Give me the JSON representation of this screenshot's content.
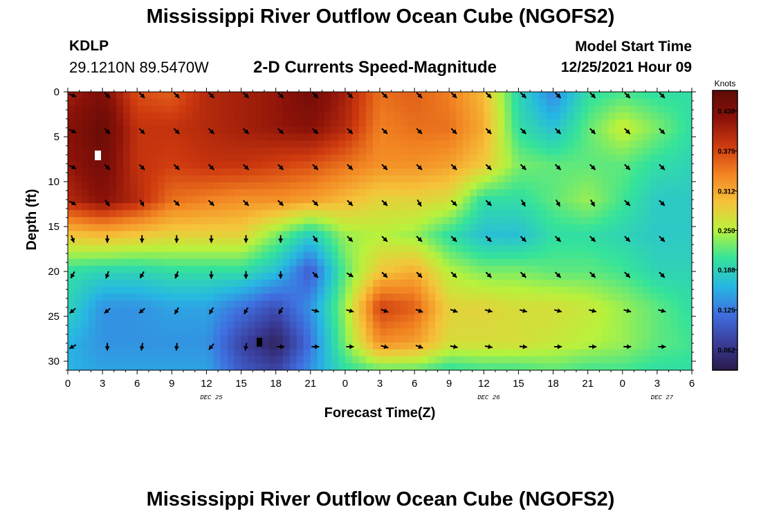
{
  "header": {
    "title": "Mississippi River Outflow Ocean Cube (NGOFS2)",
    "station": "KDLP",
    "coords": "29.1210N  89.5470W",
    "subtitle": "2-D Currents Speed-Magnitude",
    "model_start_label": "Model Start Time",
    "model_start_value": "12/25/2021 Hour 09"
  },
  "footer": {
    "title": "Mississippi River Outflow Ocean Cube (NGOFS2)"
  },
  "chart_data": {
    "type": "heatmap",
    "title": "2-D Currents Speed-Magnitude",
    "xlabel": "Forecast Time(Z)",
    "ylabel": "Depth (ft)",
    "x_tick_labels": [
      "0",
      "3",
      "6",
      "9",
      "12",
      "15",
      "18",
      "21",
      "0",
      "3",
      "6",
      "9",
      "12",
      "15",
      "18",
      "21",
      "0",
      "3",
      "6"
    ],
    "x_date_labels": [
      {
        "label": "DEC 25",
        "at_hours_from_start": 12
      },
      {
        "label": "DEC 26",
        "at_hours_from_start": 36
      },
      {
        "label": "DEC 27",
        "at_hours_from_start": 51
      }
    ],
    "x_range_hours": [
      0,
      54
    ],
    "y_ticks": [
      0,
      5,
      10,
      15,
      20,
      25,
      30
    ],
    "ylim": [
      0,
      31
    ],
    "y_inverted": true,
    "colorbar": {
      "units": "Knots",
      "tick_labels": [
        "0.438",
        "0.375",
        "0.312",
        "0.250",
        "0.188",
        "0.125",
        "0.062"
      ],
      "range": [
        0.03,
        0.47
      ],
      "colors": [
        "#2b1a4a",
        "#3a3d9a",
        "#3f6fe0",
        "#27b7e3",
        "#35e39a",
        "#b8f23c",
        "#f6c33a",
        "#f28422",
        "#cf3a0f",
        "#8b1209",
        "#5e0a06"
      ]
    },
    "speed_grid": {
      "hours": [
        0,
        3,
        6,
        9,
        12,
        15,
        18,
        21,
        24,
        27,
        30,
        33,
        36,
        39,
        42,
        45,
        48,
        51,
        54
      ],
      "depths_ft": [
        0,
        4,
        8,
        12,
        16,
        20,
        24,
        28,
        31
      ],
      "values_knots": [
        [
          0.41,
          0.44,
          0.37,
          0.36,
          0.4,
          0.41,
          0.42,
          0.45,
          0.41,
          0.35,
          0.36,
          0.34,
          0.3,
          0.19,
          0.13,
          0.2,
          0.21,
          0.2,
          0.2
        ],
        [
          0.43,
          0.46,
          0.39,
          0.39,
          0.4,
          0.41,
          0.42,
          0.43,
          0.4,
          0.34,
          0.35,
          0.35,
          0.31,
          0.2,
          0.17,
          0.22,
          0.26,
          0.23,
          0.2
        ],
        [
          0.42,
          0.45,
          0.39,
          0.38,
          0.39,
          0.39,
          0.38,
          0.37,
          0.35,
          0.33,
          0.33,
          0.32,
          0.29,
          0.23,
          0.22,
          0.22,
          0.22,
          0.2,
          0.19
        ],
        [
          0.4,
          0.43,
          0.4,
          0.35,
          0.34,
          0.33,
          0.33,
          0.32,
          0.3,
          0.28,
          0.28,
          0.27,
          0.2,
          0.2,
          0.22,
          0.24,
          0.21,
          0.18,
          0.18
        ],
        [
          0.29,
          0.3,
          0.29,
          0.28,
          0.28,
          0.28,
          0.23,
          0.18,
          0.24,
          0.25,
          0.24,
          0.2,
          0.17,
          0.17,
          0.2,
          0.2,
          0.19,
          0.18,
          0.18
        ],
        [
          0.2,
          0.19,
          0.19,
          0.2,
          0.2,
          0.2,
          0.17,
          0.1,
          0.22,
          0.29,
          0.31,
          0.25,
          0.23,
          0.23,
          0.22,
          0.22,
          0.21,
          0.19,
          0.19
        ],
        [
          0.19,
          0.14,
          0.14,
          0.15,
          0.15,
          0.12,
          0.09,
          0.14,
          0.24,
          0.38,
          0.36,
          0.28,
          0.28,
          0.27,
          0.27,
          0.26,
          0.24,
          0.22,
          0.2
        ],
        [
          0.16,
          0.14,
          0.14,
          0.14,
          0.14,
          0.08,
          0.04,
          0.12,
          0.23,
          0.33,
          0.32,
          0.27,
          0.27,
          0.27,
          0.26,
          0.25,
          0.24,
          0.22,
          0.21
        ],
        [
          0.16,
          0.15,
          0.15,
          0.15,
          0.15,
          0.1,
          0.08,
          0.14,
          0.2,
          0.22,
          0.22,
          0.2,
          0.21,
          0.21,
          0.22,
          0.21,
          0.21,
          0.2,
          0.2
        ]
      ]
    },
    "vectors": {
      "hours": [
        0,
        3,
        6,
        9,
        12,
        15,
        18,
        21,
        24,
        27,
        30,
        33,
        36,
        39,
        42,
        45,
        48,
        51
      ],
      "depths_ft": [
        0,
        4,
        8,
        12,
        16,
        20,
        24,
        28
      ],
      "angle_deg": [
        [
          20,
          45,
          45,
          45,
          45,
          45,
          45,
          45,
          45,
          45,
          45,
          45,
          45,
          45,
          45,
          45,
          45,
          45
        ],
        [
          25,
          45,
          45,
          45,
          45,
          45,
          45,
          45,
          45,
          45,
          45,
          45,
          45,
          45,
          45,
          45,
          45,
          45
        ],
        [
          25,
          45,
          45,
          45,
          45,
          45,
          45,
          45,
          45,
          45,
          45,
          45,
          45,
          45,
          45,
          45,
          45,
          45
        ],
        [
          30,
          55,
          60,
          45,
          45,
          45,
          45,
          45,
          45,
          45,
          60,
          45,
          45,
          60,
          60,
          60,
          45,
          45
        ],
        [
          70,
          90,
          90,
          90,
          90,
          90,
          90,
          55,
          45,
          45,
          45,
          45,
          45,
          45,
          45,
          45,
          45,
          45
        ],
        [
          120,
          110,
          120,
          110,
          90,
          90,
          90,
          45,
          30,
          45,
          45,
          45,
          45,
          45,
          45,
          45,
          45,
          45
        ],
        [
          140,
          140,
          140,
          120,
          120,
          120,
          120,
          15,
          15,
          20,
          20,
          20,
          15,
          15,
          15,
          15,
          15,
          15
        ],
        [
          150,
          90,
          100,
          95,
          130,
          100,
          0,
          0,
          0,
          15,
          20,
          10,
          10,
          5,
          0,
          0,
          0,
          0
        ]
      ]
    }
  }
}
